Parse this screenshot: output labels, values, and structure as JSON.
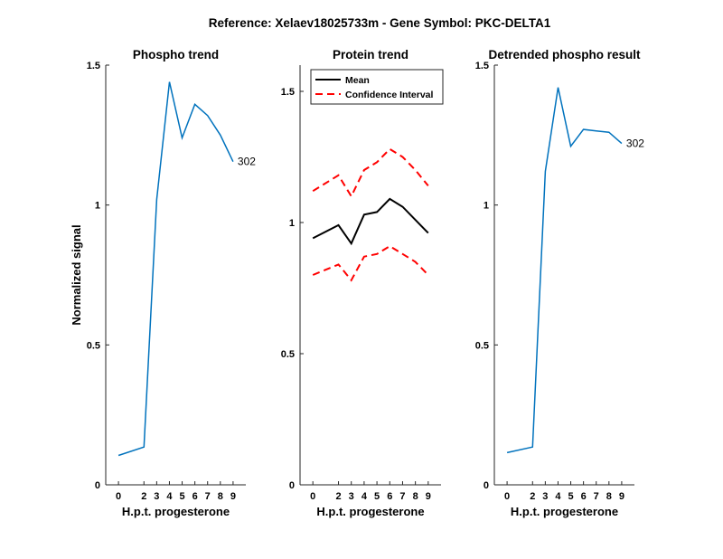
{
  "figure": {
    "suptitle": "Reference:  Xelaev18025733m - Gene Symbol:  PKC-DELTA1"
  },
  "chart_data": [
    {
      "type": "line",
      "title": "Phospho trend",
      "xlabel": "H.p.t. progesterone",
      "ylabel": "Normalized signal",
      "x": [
        0,
        2,
        3,
        4,
        5,
        6,
        7,
        8,
        9
      ],
      "x_ticks": [
        "0",
        "2",
        "3",
        "4",
        "5",
        "6",
        "7",
        "8",
        "9"
      ],
      "y_ticks": [
        "0",
        "0.5",
        "1",
        "1.5"
      ],
      "ylim": [
        0,
        1.5
      ],
      "series": [
        {
          "values": [
            0.105,
            0.135,
            1.02,
            1.44,
            1.24,
            1.36,
            1.32,
            1.25,
            1.155
          ],
          "color": "#0072BD"
        }
      ],
      "annotations": [
        {
          "text": "302",
          "x": 9,
          "y": 1.155
        }
      ]
    },
    {
      "type": "line",
      "title": "Protein trend",
      "xlabel": "H.p.t. progesterone",
      "ylabel": "",
      "x": [
        0,
        2,
        3,
        4,
        5,
        6,
        7,
        8,
        9
      ],
      "x_ticks": [
        "0",
        "2",
        "3",
        "4",
        "5",
        "6",
        "7",
        "8",
        "9"
      ],
      "y_ticks": [
        "0",
        "0.5",
        "1",
        "1.5"
      ],
      "ylim": [
        0,
        1.6
      ],
      "legend": {
        "placement": "top-left",
        "entries": [
          "Mean",
          "Confidence Interval"
        ]
      },
      "series": [
        {
          "name": "Mean",
          "values": [
            0.94,
            0.99,
            0.92,
            1.03,
            1.04,
            1.09,
            1.06,
            1.01,
            0.96
          ],
          "color": "#000000",
          "style": "solid"
        },
        {
          "name": "Confidence Interval",
          "values": [
            1.12,
            1.18,
            1.1,
            1.2,
            1.23,
            1.28,
            1.25,
            1.2,
            1.14
          ],
          "color": "#FF0000",
          "style": "dashed"
        },
        {
          "name": "Confidence Interval",
          "values": [
            0.8,
            0.84,
            0.78,
            0.87,
            0.88,
            0.91,
            0.88,
            0.85,
            0.8
          ],
          "color": "#FF0000",
          "style": "dashed"
        }
      ]
    },
    {
      "type": "line",
      "title": "Detrended phospho result",
      "xlabel": "H.p.t. progesterone",
      "ylabel": "",
      "x": [
        0,
        2,
        3,
        4,
        5,
        6,
        7,
        8,
        9
      ],
      "x_ticks": [
        "0",
        "2",
        "3",
        "4",
        "5",
        "6",
        "7",
        "8",
        "9"
      ],
      "y_ticks": [
        "0",
        "0.5",
        "1",
        "1.5"
      ],
      "ylim": [
        0,
        1.5
      ],
      "series": [
        {
          "values": [
            0.115,
            0.135,
            1.12,
            1.42,
            1.21,
            1.27,
            1.265,
            1.26,
            1.22
          ],
          "color": "#0072BD"
        }
      ],
      "annotations": [
        {
          "text": "302",
          "x": 9,
          "y": 1.22
        }
      ]
    }
  ]
}
